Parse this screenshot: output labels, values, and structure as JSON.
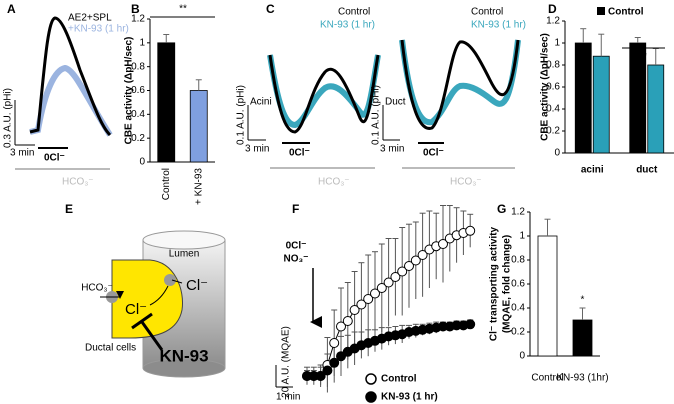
{
  "panel_a": {
    "label": "A",
    "legend": [
      "AE2+SPL",
      "+KN-93 (1 hr)"
    ],
    "ylabel": "0.3 A.U. (pHi)",
    "time_scale": "3 min",
    "bar_label": "0Cl⁻",
    "bath_label": "HCO₃⁻"
  },
  "panel_c": {
    "label": "C",
    "legend": [
      "Control",
      "KN-93 (1 hr)"
    ],
    "panels": [
      "Acini",
      "Duct"
    ],
    "ylabel": "0.1 A.U. (pHi)",
    "time_scale": "3 min",
    "bar_label": "0Cl⁻",
    "bath_label": "HCO₃⁻"
  },
  "panel_e": {
    "label": "E",
    "lumen": "Lumen",
    "hco3": "HCO₃⁻",
    "cl_out": "Cl⁻",
    "cl_in": "Cl⁻",
    "cells": "Ductal cells",
    "inhibitor": "KN-93"
  },
  "chart_data": [
    {
      "type": "bar",
      "label": "B",
      "ylabel": "CBE activity (ΔpH/sec)",
      "categories": [
        "Control",
        "+ KN-93"
      ],
      "values": [
        1.0,
        0.6
      ],
      "errors": [
        0.07,
        0.09
      ],
      "colors": [
        "#000000",
        "#7f9fdf"
      ],
      "ylim": [
        0,
        1.2
      ],
      "yticks": [
        0,
        0.2,
        0.4,
        0.6,
        0.8,
        1,
        1.2
      ],
      "annotation": "**"
    },
    {
      "type": "bar",
      "label": "D",
      "ylabel": "CBE activity (ΔpH/sec)",
      "categories": [
        "acini",
        "duct"
      ],
      "series": [
        {
          "name": "Control",
          "color": "#000000",
          "values": [
            1.0,
            1.0
          ],
          "errors": [
            0.13,
            0.05
          ]
        },
        {
          "color": "#2aa0b8",
          "values": [
            0.88,
            0.8
          ],
          "errors": [
            0.2,
            0.15
          ]
        }
      ],
      "ylim": [
        0,
        1.2
      ],
      "yticks": [
        0,
        0.2,
        0.4,
        0.6,
        0.8,
        1,
        1.2
      ],
      "annotation": "*"
    },
    {
      "type": "line",
      "label": "F",
      "annotation": [
        "0Cl⁻",
        "NO₃⁻"
      ],
      "x": [
        0,
        0.4,
        0.8,
        1.2,
        1.6,
        2,
        2.4,
        2.8,
        3.2,
        3.6,
        4,
        4.4,
        4.8,
        5.2,
        5.6,
        6,
        6.4,
        6.8,
        7.2,
        7.6,
        8,
        8.4,
        8.8,
        9.2,
        9.6
      ],
      "series": [
        {
          "name": "Control",
          "color": "#ffffff",
          "values": [
            0,
            0,
            0,
            10,
            30,
            45,
            50,
            60,
            65,
            70,
            75,
            80,
            85,
            90,
            95,
            100,
            105,
            110,
            115,
            118,
            120,
            125,
            128,
            130,
            132
          ],
          "errors": [
            8,
            8,
            10,
            25,
            30,
            35,
            35,
            35,
            38,
            40,
            38,
            40,
            40,
            35,
            40,
            38,
            35,
            38,
            35,
            30,
            35,
            30,
            25,
            20,
            15
          ]
        },
        {
          "name": "KN-93 (1 hr)",
          "color": "#000000",
          "values": [
            0,
            0,
            0,
            5,
            12,
            18,
            22,
            25,
            28,
            30,
            32,
            34,
            36,
            37,
            38,
            40,
            41,
            42,
            43,
            44,
            45,
            45,
            46,
            46,
            47
          ],
          "errors": [
            5,
            5,
            8,
            15,
            18,
            18,
            15,
            15,
            12,
            12,
            10,
            10,
            8,
            8,
            8,
            6,
            6,
            5,
            5,
            5,
            4,
            4,
            4,
            4,
            4
          ]
        }
      ],
      "scalebar": {
        "y": 20,
        "y_label": "20 A.U. (MQAE)",
        "x": 1,
        "x_label": "1 min"
      }
    },
    {
      "type": "bar",
      "label": "G",
      "ylabel": [
        "Cl⁻ transporting activity",
        "(MQAE, fold change)"
      ],
      "categories": [
        "Control",
        "KN-93 (1hr)"
      ],
      "values": [
        1.0,
        0.3
      ],
      "errors": [
        0.14,
        0.1
      ],
      "colors": [
        "#ffffff",
        "#000000"
      ],
      "ylim": [
        0,
        1.2
      ],
      "yticks": [
        0,
        0.2,
        0.4,
        0.6,
        0.8,
        1,
        1.2
      ],
      "annotation": "*"
    }
  ]
}
